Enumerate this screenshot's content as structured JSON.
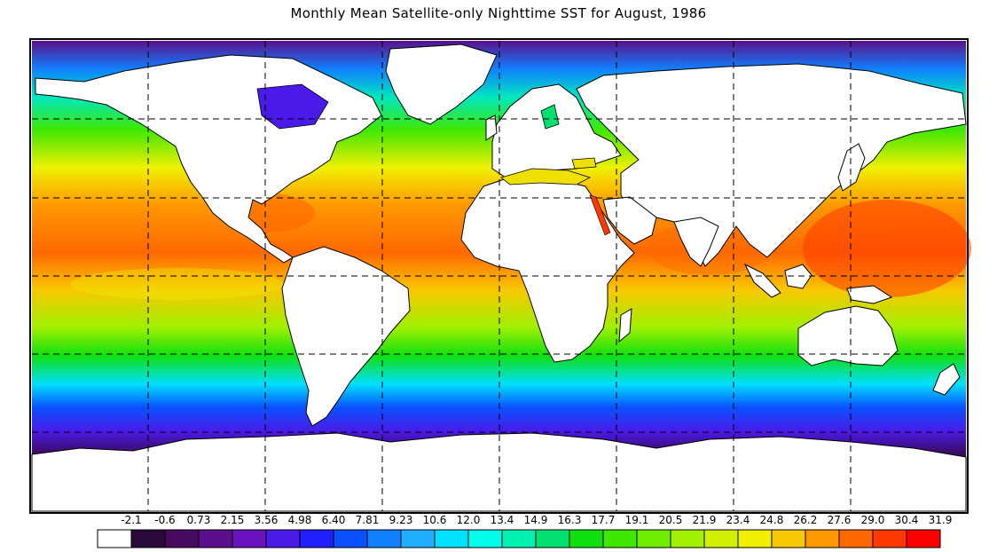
{
  "title": "Monthly Mean Satellite-only Nighttime SST for August, 1986",
  "colorbar": {
    "tick_labels": [
      "-2.1",
      "-0.6",
      "0.73",
      "2.15",
      "3.56",
      "4.98",
      "6.40",
      "7.81",
      "9.23",
      "10.6",
      "12.0",
      "13.4",
      "14.9",
      "16.3",
      "17.7",
      "19.1",
      "20.5",
      "21.9",
      "23.4",
      "24.8",
      "26.2",
      "27.6",
      "29.0",
      "30.4",
      "31.9"
    ],
    "colors": [
      "#ffffff",
      "#2a0a3a",
      "#460a5e",
      "#5a108a",
      "#6a14c0",
      "#4a1ae8",
      "#2020ff",
      "#0a50ff",
      "#1080ff",
      "#20b0ff",
      "#00e0ff",
      "#00ffe8",
      "#00f0b0",
      "#00e070",
      "#10e010",
      "#40e800",
      "#70ee00",
      "#a0f000",
      "#d0f000",
      "#f0f000",
      "#f8c800",
      "#ff9800",
      "#ff6800",
      "#ff3800",
      "#ff0000"
    ],
    "units": ""
  },
  "map_colors": {
    "land": "#ffffff",
    "coast": "#000000",
    "grid": "#000000"
  }
}
